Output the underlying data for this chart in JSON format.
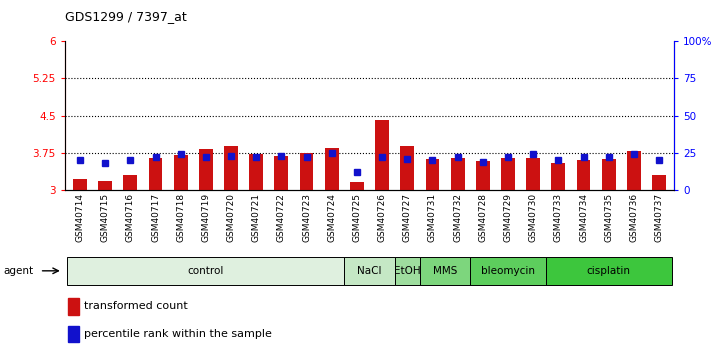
{
  "title": "GDS1299 / 7397_at",
  "samples": [
    "GSM40714",
    "GSM40715",
    "GSM40716",
    "GSM40717",
    "GSM40718",
    "GSM40719",
    "GSM40720",
    "GSM40721",
    "GSM40722",
    "GSM40723",
    "GSM40724",
    "GSM40725",
    "GSM40726",
    "GSM40727",
    "GSM40731",
    "GSM40732",
    "GSM40728",
    "GSM40729",
    "GSM40730",
    "GSM40733",
    "GSM40734",
    "GSM40735",
    "GSM40736",
    "GSM40737"
  ],
  "red_values": [
    3.22,
    3.18,
    3.3,
    3.65,
    3.7,
    3.82,
    3.88,
    3.72,
    3.68,
    3.75,
    3.85,
    3.15,
    4.42,
    3.88,
    3.62,
    3.65,
    3.58,
    3.65,
    3.65,
    3.55,
    3.6,
    3.62,
    3.78,
    3.3
  ],
  "blue_values": [
    20,
    18,
    20,
    22,
    24,
    22,
    23,
    22,
    23,
    22,
    25,
    12,
    22,
    21,
    20,
    22,
    19,
    22,
    24,
    20,
    22,
    22,
    24,
    20
  ],
  "ylim_left": [
    3.0,
    6.0
  ],
  "ylim_right": [
    0,
    100
  ],
  "yticks_left": [
    3.0,
    3.75,
    4.5,
    5.25,
    6.0
  ],
  "yticks_right": [
    0,
    25,
    50,
    75,
    100
  ],
  "ytick_labels_left": [
    "3",
    "3.75",
    "4.5",
    "5.25",
    "6"
  ],
  "ytick_labels_right": [
    "0",
    "25",
    "50",
    "75",
    "100%"
  ],
  "hlines": [
    3.75,
    4.5,
    5.25
  ],
  "bar_color": "#cc1111",
  "blue_color": "#1111cc",
  "bar_width": 0.55,
  "bar_base": 3.0,
  "group_labels": [
    "control",
    "NaCl",
    "EtOH",
    "MMS",
    "bleomycin",
    "cisplatin"
  ],
  "group_starts": [
    0,
    11,
    13,
    14,
    16,
    19
  ],
  "group_ends": [
    11,
    13,
    14,
    16,
    19,
    24
  ],
  "group_colors": [
    "#dff0df",
    "#c5e8c5",
    "#9edd9e",
    "#7dd67d",
    "#5dce5d",
    "#3dc63d"
  ],
  "legend_red": "transformed count",
  "legend_blue": "percentile rank within the sample"
}
